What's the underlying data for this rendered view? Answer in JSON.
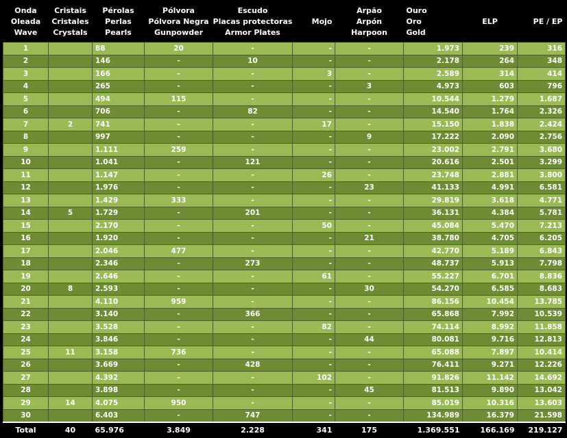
{
  "headers": [
    {
      "lines": [
        "Onda",
        "Oleada",
        "Wave"
      ]
    },
    {
      "lines": [
        "Cristais",
        "Cristales",
        "Crystals"
      ]
    },
    {
      "lines": [
        "Pérolas",
        "Perlas",
        "Pearls"
      ]
    },
    {
      "lines": [
        "Pólvora",
        "Pólvora Negra",
        "Gunpowder"
      ]
    },
    {
      "lines": [
        "Escudo",
        "Placas protectoras",
        "Armor Plates"
      ]
    },
    {
      "lines": [
        "Mojo"
      ]
    },
    {
      "lines": [
        "Arpão",
        "Arpón",
        "Harpoon"
      ]
    },
    {
      "lines": [
        "Ouro",
        "Oro",
        "Gold"
      ]
    },
    {
      "lines": [
        "ELP"
      ]
    },
    {
      "lines": [
        "PE / EP"
      ]
    }
  ],
  "rows": [
    [
      "1",
      "",
      "88",
      "20",
      "-",
      "-",
      "-",
      "1.973",
      "239",
      "316"
    ],
    [
      "2",
      "",
      "146",
      "-",
      "10",
      "-",
      "-",
      "2.178",
      "264",
      "348"
    ],
    [
      "3",
      "",
      "166",
      "-",
      "-",
      "3",
      "-",
      "2.589",
      "314",
      "414"
    ],
    [
      "4",
      "",
      "265",
      "-",
      "-",
      "-",
      "3",
      "4.973",
      "603",
      "796"
    ],
    [
      "5",
      "",
      "494",
      "115",
      "-",
      "-",
      "-",
      "10.544",
      "1.279",
      "1.687"
    ],
    [
      "6",
      "",
      "706",
      "-",
      "82",
      "-",
      "-",
      "14.540",
      "1.764",
      "2.326"
    ],
    [
      "7",
      "2",
      "741",
      "-",
      "-",
      "17",
      "-",
      "15.150",
      "1.838",
      "2.424"
    ],
    [
      "8",
      "",
      "997",
      "-",
      "-",
      "-",
      "9",
      "17.222",
      "2.090",
      "2.756"
    ],
    [
      "9",
      "",
      "1.111",
      "259",
      "-",
      "-",
      "-",
      "23.002",
      "2.791",
      "3.680"
    ],
    [
      "10",
      "",
      "1.041",
      "-",
      "121",
      "-",
      "-",
      "20.616",
      "2.501",
      "3.299"
    ],
    [
      "11",
      "",
      "1.147",
      "-",
      "-",
      "26",
      "-",
      "23.748",
      "2.881",
      "3.800"
    ],
    [
      "12",
      "",
      "1.976",
      "-",
      "-",
      "-",
      "23",
      "41.133",
      "4.991",
      "6.581"
    ],
    [
      "13",
      "",
      "1.429",
      "333",
      "-",
      "-",
      "-",
      "29.819",
      "3.618",
      "4.771"
    ],
    [
      "14",
      "5",
      "1.729",
      "-",
      "201",
      "-",
      "-",
      "36.131",
      "4.384",
      "5.781"
    ],
    [
      "15",
      "",
      "2.170",
      "-",
      "-",
      "50",
      "-",
      "45.084",
      "5.470",
      "7.213"
    ],
    [
      "16",
      "",
      "1.920",
      "-",
      "-",
      "-",
      "21",
      "38.780",
      "4.705",
      "6.205"
    ],
    [
      "17",
      "",
      "2.046",
      "477",
      "-",
      "-",
      "-",
      "42.770",
      "5.189",
      "6.843"
    ],
    [
      "18",
      "",
      "2.346",
      "-",
      "273",
      "-",
      "-",
      "48.737",
      "5.913",
      "7.798"
    ],
    [
      "19",
      "",
      "2.646",
      "-",
      "-",
      "61",
      "-",
      "55.227",
      "6.701",
      "8.836"
    ],
    [
      "20",
      "8",
      "2.593",
      "-",
      "-",
      "-",
      "30",
      "54.270",
      "6.585",
      "8.683"
    ],
    [
      "21",
      "",
      "4.110",
      "959",
      "-",
      "-",
      "-",
      "86.156",
      "10.454",
      "13.785"
    ],
    [
      "22",
      "",
      "3.140",
      "-",
      "366",
      "-",
      "-",
      "65.868",
      "7.992",
      "10.539"
    ],
    [
      "23",
      "",
      "3.528",
      "-",
      "-",
      "82",
      "-",
      "74.114",
      "8.992",
      "11.858"
    ],
    [
      "24",
      "",
      "3.846",
      "-",
      "-",
      "-",
      "44",
      "80.081",
      "9.716",
      "12.813"
    ],
    [
      "25",
      "11",
      "3.158",
      "736",
      "-",
      "-",
      "-",
      "65.088",
      "7.897",
      "10.414"
    ],
    [
      "26",
      "",
      "3.669",
      "-",
      "428",
      "-",
      "-",
      "76.411",
      "9.271",
      "12.226"
    ],
    [
      "27",
      "",
      "4.392",
      "-",
      "-",
      "102",
      "-",
      "91.826",
      "11.142",
      "14.692"
    ],
    [
      "28",
      "",
      "3.898",
      "-",
      "-",
      "-",
      "45",
      "81.513",
      "9.890",
      "13.042"
    ],
    [
      "29",
      "14",
      "4.075",
      "950",
      "-",
      "-",
      "-",
      "85.019",
      "10.316",
      "13.603"
    ],
    [
      "30",
      "",
      "6.403",
      "-",
      "747",
      "-",
      "-",
      "134.989",
      "16.379",
      "21.598"
    ]
  ],
  "totals": [
    "Total",
    "40",
    "65.976",
    "3.849",
    "2.228",
    "341",
    "175",
    "1.369.551",
    "166.169",
    "219.127"
  ],
  "colors": {
    "row_light": "#9aba55",
    "row_dark": "#6e8c34",
    "header_bg": "#000000",
    "text": "#ffffff"
  }
}
